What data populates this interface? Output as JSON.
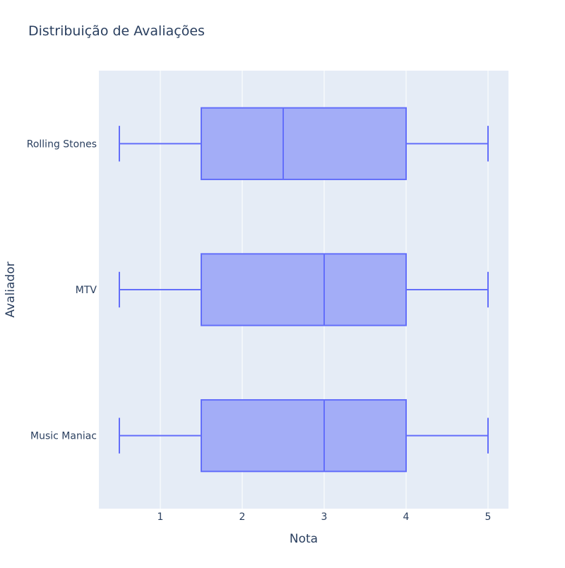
{
  "chart_data": {
    "type": "box",
    "orientation": "horizontal",
    "title": "Distribuição de Avaliações",
    "xlabel": "Nota",
    "ylabel": "Avaliador",
    "xlim": [
      0.25,
      5.25
    ],
    "xticks": [
      "1",
      "2",
      "3",
      "4",
      "5"
    ],
    "grid": true,
    "colors": {
      "box_fill": "#a3adf7",
      "box_line": "#636efa",
      "plot_bg": "#e5ecf6",
      "grid": "#ffffff",
      "text": "#2a3f5f"
    },
    "categories": [
      "Music Maniac",
      "MTV",
      "Rolling Stones"
    ],
    "boxes": [
      {
        "name": "Rolling Stones",
        "min": 0.5,
        "q1": 1.5,
        "median": 2.5,
        "q3": 4,
        "max": 5
      },
      {
        "name": "MTV",
        "min": 0.5,
        "q1": 1.5,
        "median": 3,
        "q3": 4,
        "max": 5
      },
      {
        "name": "Music Maniac",
        "min": 0.5,
        "q1": 1.5,
        "median": 3,
        "q3": 4,
        "max": 5
      }
    ]
  }
}
